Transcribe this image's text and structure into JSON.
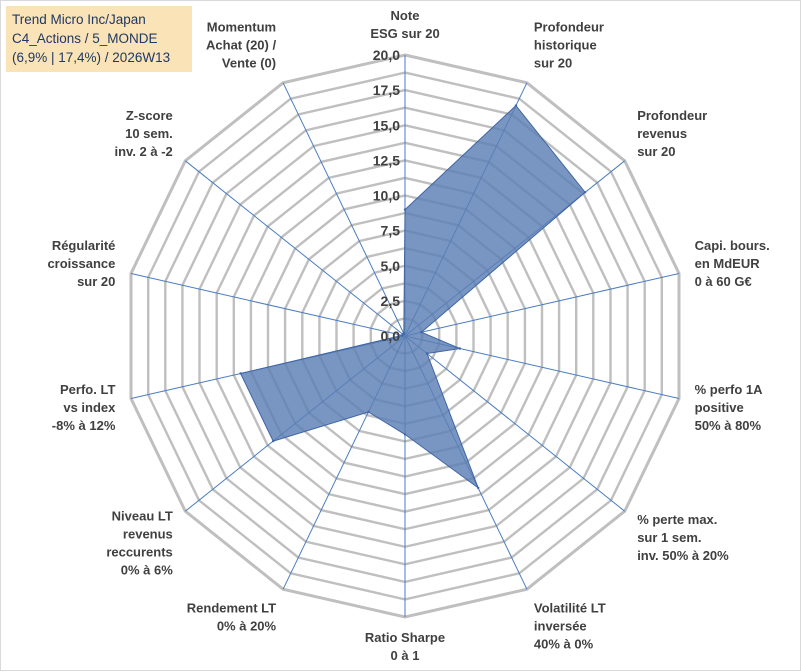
{
  "title_lines": [
    "Trend Micro Inc/Japan",
    "C4_Actions / 5_MONDE",
    "(6,9% | 17,4%) / 2026W13"
  ],
  "chart_data": {
    "type": "radar",
    "title": "Trend Micro Inc/Japan C4_Actions / 5_MONDE (6,9% | 17,4%) / 2026W13",
    "rmin": 0,
    "rmax": 20,
    "grid_step": 1.25,
    "ticks": [
      {
        "value": 0,
        "label": "0,0"
      },
      {
        "value": 2.5,
        "label": "2,5"
      },
      {
        "value": 5,
        "label": "5,0"
      },
      {
        "value": 7.5,
        "label": "7,5"
      },
      {
        "value": 10,
        "label": "10,0"
      },
      {
        "value": 12.5,
        "label": "12,5"
      },
      {
        "value": 15,
        "label": "15,0"
      },
      {
        "value": 17.5,
        "label": "17,5"
      },
      {
        "value": 20,
        "label": "20,0"
      }
    ],
    "categories": [
      {
        "lines": [
          "Note",
          "ESG sur 20"
        ]
      },
      {
        "lines": [
          "Profondeur",
          "historique",
          "sur 20"
        ]
      },
      {
        "lines": [
          "Profondeur",
          "revenus",
          "sur 20"
        ]
      },
      {
        "lines": [
          "Capi. bours.",
          "en MdEUR",
          "0 à 60 G€"
        ]
      },
      {
        "lines": [
          "% perfo 1A",
          "positive",
          "50% à 80%"
        ]
      },
      {
        "lines": [
          "% perte max.",
          "sur 1 sem.",
          "inv. 50% à 20%"
        ]
      },
      {
        "lines": [
          "Volatilité LT",
          "inversée",
          "40% à 0%"
        ]
      },
      {
        "lines": [
          "Ratio Sharpe",
          "0 à 1"
        ]
      },
      {
        "lines": [
          "Rendement LT",
          "0% à 20%"
        ]
      },
      {
        "lines": [
          "Niveau LT",
          "revenus",
          "reccurents",
          "0% à 6%"
        ]
      },
      {
        "lines": [
          "Perfo. LT",
          "vs index",
          "-8% à 12%"
        ]
      },
      {
        "lines": [
          "Régularité",
          "croissance",
          "sur 20"
        ]
      },
      {
        "lines": [
          "Z-score",
          "10 sem.",
          "inv. 2 à -2"
        ]
      },
      {
        "lines": [
          "Momentum",
          "Achat (20) /",
          "Vente (0)"
        ]
      }
    ],
    "series": [
      {
        "name": "Trend Micro Inc/Japan",
        "values": [
          9.0,
          18.2,
          16.4,
          1.2,
          4.0,
          2.0,
          12.0,
          7.0,
          6.0,
          12.0,
          12.0,
          0.2,
          0.2,
          0.2
        ],
        "fill": "#5b7fb5",
        "stroke": "#3f65a6"
      }
    ],
    "grid_color": "#bfbfbf",
    "spoke_color": "#4a7dc0"
  }
}
